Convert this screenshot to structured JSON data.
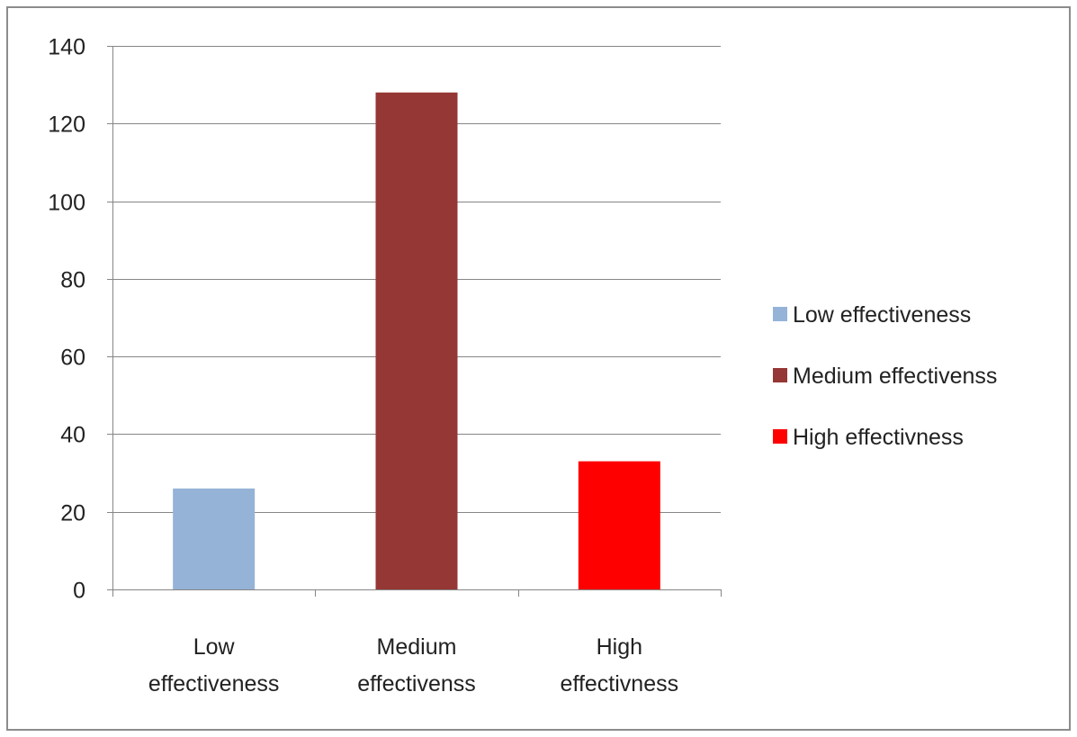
{
  "chart_data": {
    "type": "bar",
    "title": "",
    "xlabel": "",
    "ylabel": "",
    "categories": [
      "Low effectiveness",
      "Medium effectivenss",
      "High effectivness"
    ],
    "category_label_lines": [
      [
        "Low",
        "effectiveness"
      ],
      [
        "Medium",
        "effectivenss"
      ],
      [
        "High",
        "effectivness"
      ]
    ],
    "values": [
      26,
      128,
      33
    ],
    "colors": [
      "#95b3d7",
      "#953735",
      "#ff0000"
    ],
    "ylim": [
      0,
      140
    ],
    "yticks": [
      0,
      20,
      40,
      60,
      80,
      100,
      120,
      140
    ],
    "grid": true,
    "legend": {
      "position": "right",
      "entries": [
        {
          "label": "Low effectiveness",
          "color": "#95b3d7"
        },
        {
          "label": "Medium effectivenss",
          "color": "#953735"
        },
        {
          "label": "High effectivness",
          "color": "#ff0000"
        }
      ]
    }
  }
}
